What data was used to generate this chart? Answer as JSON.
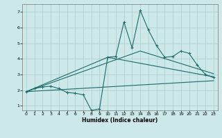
{
  "xlabel": "Humidex (Indice chaleur)",
  "bg_color": "#cce8e8",
  "grid_color": "#aacccc",
  "line_color": "#1a6b6b",
  "xlim": [
    -0.5,
    23.5
  ],
  "ylim": [
    0.7,
    7.5
  ],
  "xticks": [
    0,
    1,
    2,
    3,
    4,
    5,
    6,
    7,
    8,
    9,
    10,
    11,
    12,
    13,
    14,
    15,
    16,
    17,
    18,
    19,
    20,
    21,
    22,
    23
  ],
  "yticks": [
    1,
    2,
    3,
    4,
    5,
    6,
    7
  ],
  "main_line": [
    [
      0,
      1.9
    ],
    [
      1,
      2.1
    ],
    [
      2,
      2.2
    ],
    [
      3,
      2.25
    ],
    [
      4,
      2.1
    ],
    [
      5,
      1.85
    ],
    [
      6,
      1.8
    ],
    [
      7,
      1.7
    ],
    [
      8,
      0.7
    ],
    [
      9,
      0.8
    ],
    [
      10,
      4.1
    ],
    [
      11,
      4.15
    ],
    [
      12,
      6.35
    ],
    [
      13,
      4.7
    ],
    [
      14,
      7.1
    ],
    [
      15,
      5.85
    ],
    [
      16,
      4.85
    ],
    [
      17,
      4.1
    ],
    [
      18,
      4.15
    ],
    [
      19,
      4.5
    ],
    [
      20,
      4.35
    ],
    [
      21,
      3.6
    ],
    [
      22,
      3.0
    ],
    [
      23,
      2.8
    ]
  ],
  "line2": [
    [
      0,
      1.9
    ],
    [
      10,
      4.1
    ],
    [
      23,
      2.85
    ]
  ],
  "line3": [
    [
      0,
      1.9
    ],
    [
      14,
      4.5
    ],
    [
      23,
      3.05
    ]
  ],
  "line4": [
    [
      0,
      1.9
    ],
    [
      23,
      2.6
    ]
  ]
}
